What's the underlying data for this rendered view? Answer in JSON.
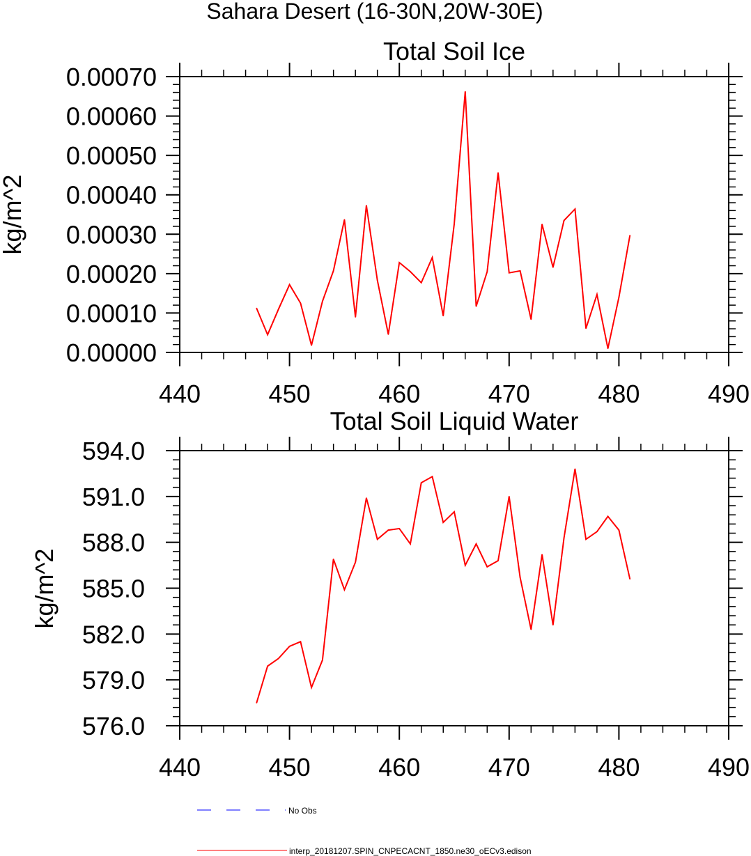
{
  "figure_title": "Sahara Desert (16-30N,20W-30E)",
  "legend": {
    "items": [
      {
        "label": "No Obs",
        "color": "#0000ff",
        "style": "dashed"
      },
      {
        "label": "interp_20181207.SPIN_CNPECACNT_1850.ne30_oECv3.edison",
        "color": "#ff0000",
        "style": "solid"
      }
    ]
  },
  "chart_data": [
    {
      "type": "line",
      "title": "Total Soil Ice",
      "xlabel": "",
      "ylabel": "kg/m^2",
      "xlim": [
        440,
        490
      ],
      "ylim": [
        0,
        0.0007
      ],
      "xticks": [
        440,
        450,
        460,
        470,
        480,
        490
      ],
      "xtick_labels": [
        "440",
        "450",
        "460",
        "470",
        "480",
        "490"
      ],
      "yticks": [
        0,
        0.0001,
        0.0002,
        0.0003,
        0.0004,
        0.0005,
        0.0006,
        0.0007
      ],
      "ytick_labels": [
        "0.00000",
        "0.00010",
        "0.00020",
        "0.00030",
        "0.00040",
        "0.00050",
        "0.00060",
        "0.00070"
      ],
      "x_minor_step": 2,
      "y_minor_step": 2e-05,
      "grid": false,
      "series": [
        {
          "name": "interp_20181207.SPIN_CNPECACNT_1850.ne30_oECv3.edison",
          "color": "#ff0000",
          "x": [
            447,
            448,
            449,
            450,
            451,
            452,
            453,
            454,
            455,
            456,
            457,
            458,
            459,
            460,
            461,
            462,
            463,
            464,
            465,
            466,
            467,
            468,
            469,
            470,
            471,
            472,
            473,
            474,
            475,
            476,
            477,
            478,
            479,
            480,
            481
          ],
          "values": [
            0.000112,
            4.5e-05,
            0.00011,
            0.000172,
            0.000125,
            1.8e-05,
            0.00013,
            0.000207,
            0.000337,
            9e-05,
            0.000373,
            0.000183,
            4.6e-05,
            0.000228,
            0.000205,
            0.000177,
            0.000241,
            9.3e-05,
            0.000326,
            0.000662,
            0.000117,
            0.000205,
            0.000456,
            0.000202,
            0.000207,
            8.4e-05,
            0.000325,
            0.000216,
            0.000335,
            0.000364,
            6.1e-05,
            0.000147,
            1e-05,
            0.00014,
            0.000297
          ]
        }
      ]
    },
    {
      "type": "line",
      "title": "Total Soil Liquid Water",
      "xlabel": "",
      "ylabel": "kg/m^2",
      "xlim": [
        440,
        490
      ],
      "ylim": [
        576,
        594
      ],
      "xticks": [
        440,
        450,
        460,
        470,
        480,
        490
      ],
      "xtick_labels": [
        "440",
        "450",
        "460",
        "470",
        "480",
        "490"
      ],
      "yticks": [
        576,
        579,
        582,
        585,
        588,
        591,
        594
      ],
      "ytick_labels": [
        "576.0",
        "579.0",
        "582.0",
        "585.0",
        "588.0",
        "591.0",
        "594.0"
      ],
      "x_minor_step": 2,
      "y_minor_step": 0.6,
      "grid": false,
      "series": [
        {
          "name": "interp_20181207.SPIN_CNPECACNT_1850.ne30_oECv3.edison",
          "color": "#ff0000",
          "x": [
            447,
            448,
            449,
            450,
            451,
            452,
            453,
            454,
            455,
            456,
            457,
            458,
            459,
            460,
            461,
            462,
            463,
            464,
            465,
            466,
            467,
            468,
            469,
            470,
            471,
            472,
            473,
            474,
            475,
            476,
            477,
            478,
            479,
            480,
            481
          ],
          "values": [
            577.5,
            579.9,
            580.4,
            581.2,
            581.5,
            578.5,
            580.3,
            586.9,
            584.9,
            586.7,
            590.9,
            588.2,
            588.8,
            588.9,
            587.9,
            591.9,
            592.3,
            589.3,
            590.0,
            586.5,
            587.9,
            586.4,
            586.8,
            591.0,
            585.7,
            582.3,
            587.2,
            582.6,
            588.3,
            592.8,
            588.2,
            588.7,
            589.7,
            588.8,
            585.6
          ]
        }
      ]
    }
  ]
}
